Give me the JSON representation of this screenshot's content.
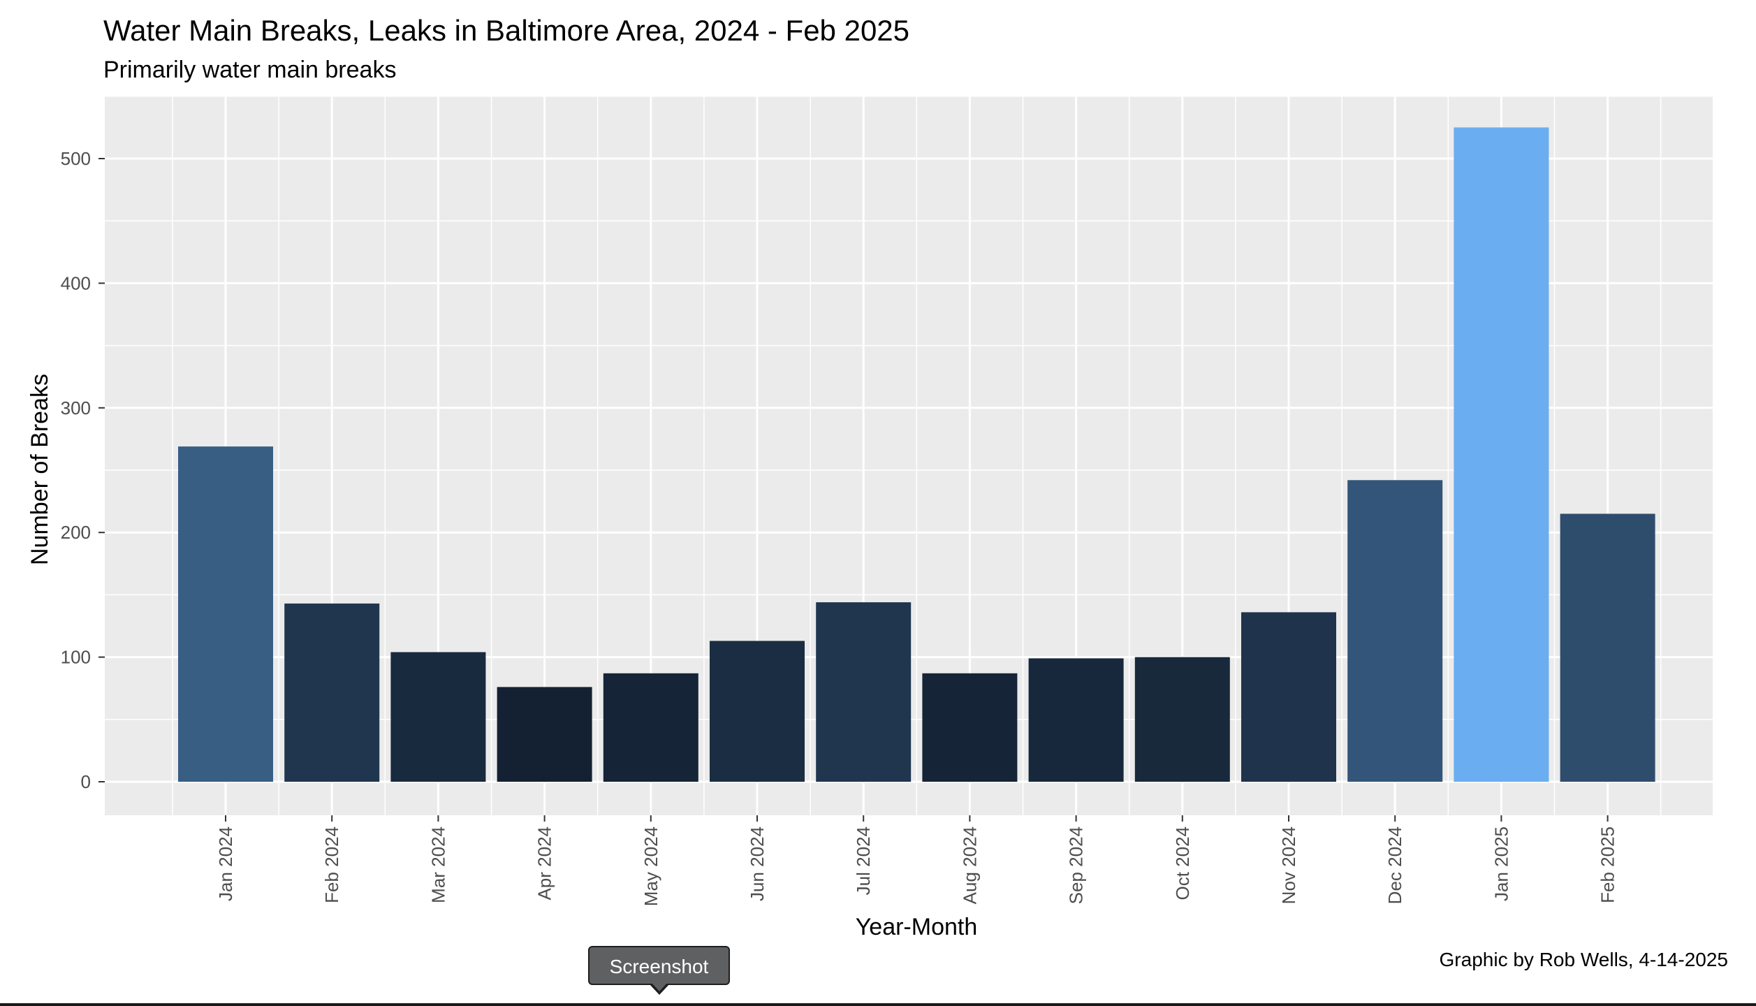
{
  "chart_data": {
    "type": "bar",
    "title": "Water Main Breaks, Leaks in Baltimore Area, 2024 - Feb 2025",
    "subtitle": "Primarily water main breaks",
    "xlabel": "Year-Month",
    "ylabel": "Number of Breaks",
    "caption": "Graphic by Rob Wells, 4-14-2025",
    "categories": [
      "Jan 2024",
      "Feb 2024",
      "Mar 2024",
      "Apr 2024",
      "May 2024",
      "Jun 2024",
      "Jul 2024",
      "Aug 2024",
      "Sep 2024",
      "Oct 2024",
      "Nov 2024",
      "Dec 2024",
      "Jan 2025",
      "Feb 2025"
    ],
    "values": [
      269,
      143,
      104,
      76,
      87,
      113,
      144,
      87,
      99,
      100,
      136,
      242,
      525,
      215
    ],
    "ylim": [
      0,
      550
    ],
    "yticks": [
      0,
      100,
      200,
      300,
      400,
      500
    ],
    "grid": true,
    "legend": "none",
    "color_scale": {
      "low": "#132132",
      "high": "#6aaef1"
    },
    "colors": {
      "panel_background": "#ebebeb",
      "gridline": "#ffffff",
      "text": "#000000",
      "tick_text": "#4d4d4d"
    }
  },
  "tooltip": {
    "label": "Screenshot"
  }
}
